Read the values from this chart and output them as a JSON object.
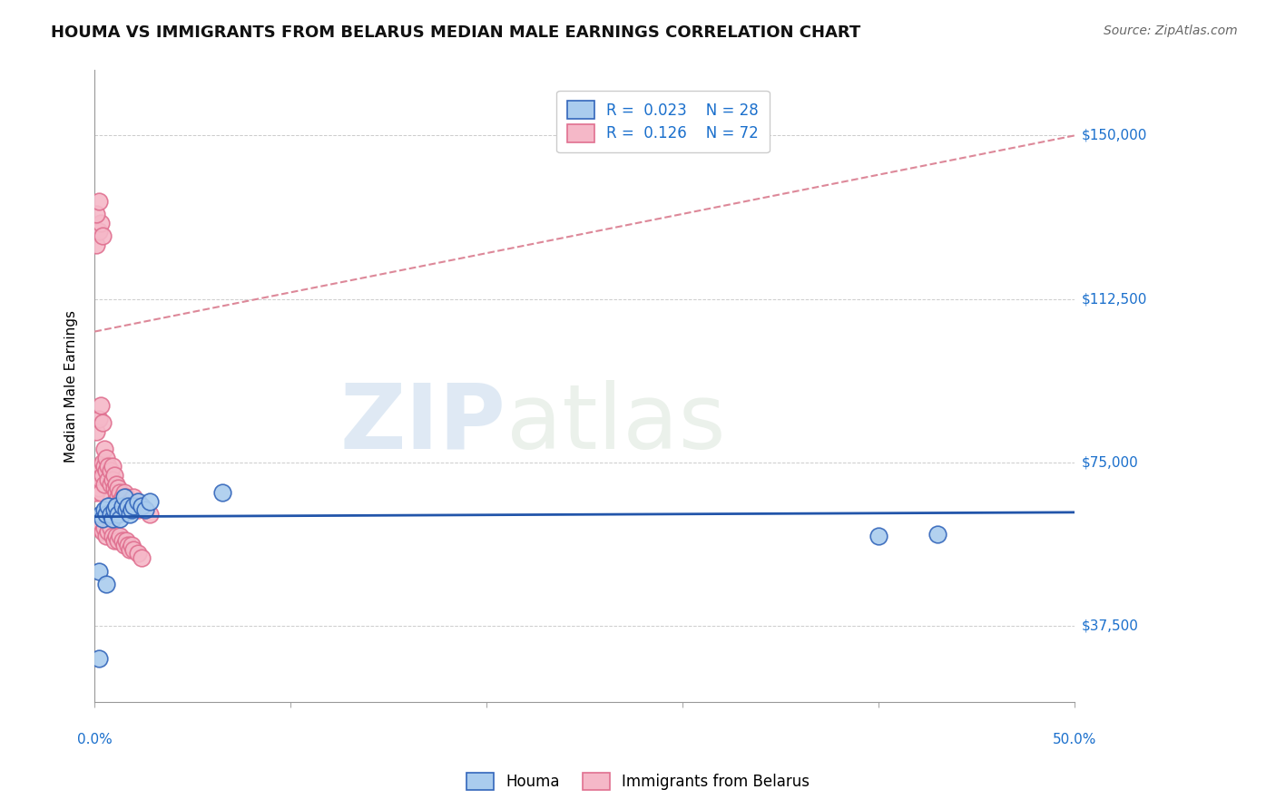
{
  "title": "HOUMA VS IMMIGRANTS FROM BELARUS MEDIAN MALE EARNINGS CORRELATION CHART",
  "source": "Source: ZipAtlas.com",
  "ylabel": "Median Male Earnings",
  "yticks": [
    37500,
    75000,
    112500,
    150000
  ],
  "ytick_labels": [
    "$37,500",
    "$75,000",
    "$112,500",
    "$150,000"
  ],
  "xlim": [
    0.0,
    0.5
  ],
  "ylim": [
    20000,
    165000
  ],
  "watermark_zip": "ZIP",
  "watermark_atlas": "atlas",
  "houma_R": "0.023",
  "houma_N": "28",
  "belarus_R": "0.126",
  "belarus_N": "72",
  "houma_color": "#aaccee",
  "houma_edge_color": "#3366bb",
  "belarus_color": "#f5b8c8",
  "belarus_edge_color": "#e07090",
  "houma_trendline_color": "#2255aa",
  "belarus_trendline_color": "#dd8899",
  "houma_x": [
    0.002,
    0.003,
    0.004,
    0.005,
    0.006,
    0.007,
    0.008,
    0.009,
    0.01,
    0.011,
    0.012,
    0.013,
    0.014,
    0.015,
    0.016,
    0.017,
    0.018,
    0.019,
    0.02,
    0.022,
    0.024,
    0.026,
    0.028,
    0.065,
    0.002,
    0.4,
    0.43,
    0.006
  ],
  "houma_y": [
    50000,
    63000,
    62000,
    64000,
    63000,
    65000,
    63000,
    62000,
    64000,
    65000,
    63000,
    62000,
    65000,
    67000,
    64000,
    65000,
    63000,
    64000,
    65000,
    66000,
    65000,
    64000,
    66000,
    68000,
    30000,
    58000,
    58500,
    47000
  ],
  "belarus_x": [
    0.001,
    0.002,
    0.002,
    0.003,
    0.003,
    0.003,
    0.004,
    0.004,
    0.005,
    0.005,
    0.005,
    0.006,
    0.006,
    0.007,
    0.007,
    0.008,
    0.008,
    0.009,
    0.009,
    0.01,
    0.01,
    0.011,
    0.011,
    0.012,
    0.012,
    0.013,
    0.013,
    0.014,
    0.014,
    0.015,
    0.015,
    0.016,
    0.017,
    0.018,
    0.019,
    0.02,
    0.021,
    0.022,
    0.024,
    0.026,
    0.028,
    0.002,
    0.003,
    0.004,
    0.005,
    0.006,
    0.007,
    0.008,
    0.009,
    0.01,
    0.011,
    0.012,
    0.013,
    0.014,
    0.015,
    0.016,
    0.017,
    0.018,
    0.019,
    0.02,
    0.022,
    0.024,
    0.001,
    0.002,
    0.003,
    0.004,
    0.001,
    0.002,
    0.003,
    0.001,
    0.002,
    0.004
  ],
  "belarus_y": [
    68000,
    72000,
    69000,
    74000,
    71000,
    68000,
    75000,
    72000,
    78000,
    74000,
    70000,
    76000,
    73000,
    74000,
    71000,
    73000,
    70000,
    74000,
    71000,
    72000,
    69000,
    70000,
    68000,
    69000,
    67000,
    68000,
    66000,
    67000,
    65000,
    68000,
    66000,
    67000,
    65000,
    66000,
    65000,
    67000,
    65000,
    64000,
    65000,
    64000,
    63000,
    60000,
    61000,
    59000,
    60000,
    58000,
    59000,
    60000,
    58000,
    57000,
    58000,
    57000,
    58000,
    57000,
    56000,
    57000,
    56000,
    55000,
    56000,
    55000,
    54000,
    53000,
    82000,
    85000,
    88000,
    84000,
    125000,
    128000,
    130000,
    132000,
    135000,
    127000
  ],
  "houma_trend_x0": 0.0,
  "houma_trend_x1": 0.5,
  "houma_trend_y0": 62500,
  "houma_trend_y1": 63500,
  "belarus_trend_x0": 0.0,
  "belarus_trend_x1": 0.5,
  "belarus_trend_y0": 105000,
  "belarus_trend_y1": 150000,
  "title_fontsize": 13,
  "axis_label_fontsize": 11,
  "tick_label_fontsize": 11,
  "legend_fontsize": 12,
  "source_fontsize": 10
}
